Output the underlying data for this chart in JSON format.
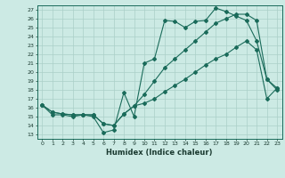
{
  "title": "",
  "xlabel": "Humidex (Indice chaleur)",
  "bg_color": "#cceae4",
  "line_color": "#1a6b5a",
  "grid_color": "#aacfc8",
  "xlim": [
    -0.5,
    23.5
  ],
  "ylim": [
    12.5,
    27.5
  ],
  "xticks": [
    0,
    1,
    2,
    3,
    4,
    5,
    6,
    7,
    8,
    9,
    10,
    11,
    12,
    13,
    14,
    15,
    16,
    17,
    18,
    19,
    20,
    21,
    22,
    23
  ],
  "yticks": [
    13,
    14,
    15,
    16,
    17,
    18,
    19,
    20,
    21,
    22,
    23,
    24,
    25,
    26,
    27
  ],
  "line1_x": [
    0,
    1,
    2,
    3,
    4,
    5,
    6,
    7,
    8,
    9,
    10,
    11,
    12,
    13,
    14,
    15,
    16,
    17,
    18,
    19,
    20,
    21,
    22,
    23
  ],
  "line1_y": [
    16.3,
    15.2,
    15.2,
    15.0,
    15.2,
    15.0,
    13.2,
    13.5,
    17.7,
    15.0,
    21.0,
    21.5,
    25.8,
    25.7,
    25.0,
    25.7,
    25.8,
    27.2,
    26.8,
    26.3,
    25.8,
    23.5,
    19.2,
    18.0
  ],
  "line2_x": [
    0,
    1,
    2,
    3,
    4,
    5,
    6,
    7,
    8,
    9,
    10,
    11,
    12,
    13,
    14,
    15,
    16,
    17,
    18,
    19,
    20,
    21,
    22,
    23
  ],
  "line2_y": [
    16.3,
    15.5,
    15.3,
    15.2,
    15.2,
    15.2,
    14.2,
    14.0,
    15.3,
    16.2,
    17.5,
    19.0,
    20.5,
    21.5,
    22.5,
    23.5,
    24.5,
    25.5,
    26.0,
    26.5,
    26.5,
    25.8,
    19.2,
    18.2
  ],
  "line3_x": [
    0,
    1,
    2,
    3,
    4,
    5,
    6,
    7,
    8,
    9,
    10,
    11,
    12,
    13,
    14,
    15,
    16,
    17,
    18,
    19,
    20,
    21,
    22,
    23
  ],
  "line3_y": [
    16.3,
    15.5,
    15.3,
    15.2,
    15.2,
    15.2,
    14.2,
    14.0,
    15.3,
    16.2,
    16.5,
    17.0,
    17.8,
    18.5,
    19.2,
    20.0,
    20.8,
    21.5,
    22.0,
    22.8,
    23.5,
    22.5,
    17.0,
    18.2
  ]
}
